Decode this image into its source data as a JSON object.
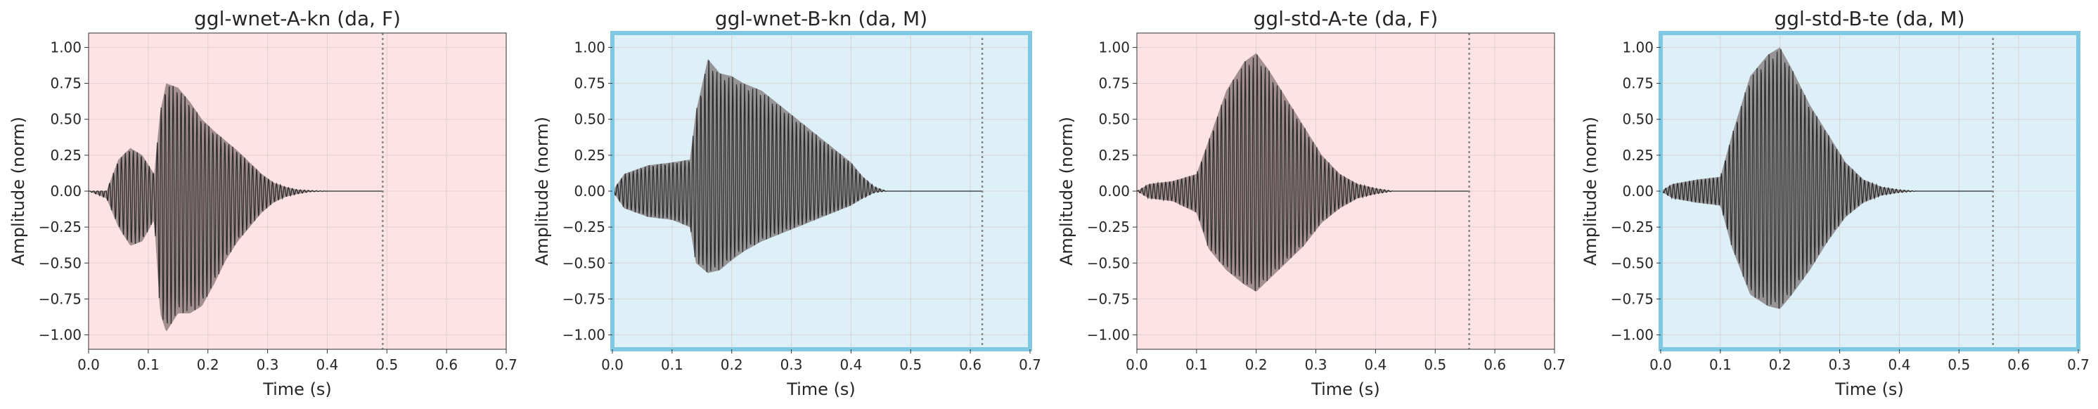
{
  "chart_data": [
    {
      "type": "line",
      "title": "ggl-wnet-A-kn (da, F)",
      "xlabel": "Time (s)",
      "ylabel": "Amplitude (norm)",
      "xlim": [
        0.0,
        0.7
      ],
      "ylim": [
        -1.1,
        1.1
      ],
      "xticks": [
        "0.0",
        "0.1",
        "0.2",
        "0.3",
        "0.4",
        "0.5",
        "0.6",
        "0.7"
      ],
      "yticks": [
        "1.00",
        "0.75",
        "0.50",
        "0.25",
        "0.00",
        "−0.25",
        "−0.50",
        "−0.75",
        "−1.00"
      ],
      "background": "#fde3e3",
      "highlighted": false,
      "end_marker_x": 0.493,
      "grid": true,
      "envelope": {
        "t": [
          0.0,
          0.03,
          0.05,
          0.07,
          0.09,
          0.11,
          0.12,
          0.13,
          0.15,
          0.17,
          0.19,
          0.21,
          0.23,
          0.25,
          0.27,
          0.29,
          0.31,
          0.33,
          0.35,
          0.37,
          0.4,
          0.45,
          0.493
        ],
        "upper": [
          0.0,
          0.0,
          0.22,
          0.3,
          0.25,
          0.12,
          0.55,
          0.75,
          0.72,
          0.62,
          0.5,
          0.42,
          0.35,
          0.28,
          0.2,
          0.12,
          0.06,
          0.03,
          0.01,
          0.005,
          0.0,
          0.0,
          0.0
        ],
        "lower": [
          0.0,
          -0.05,
          -0.25,
          -0.38,
          -0.35,
          -0.2,
          -0.85,
          -0.98,
          -0.85,
          -0.85,
          -0.8,
          -0.65,
          -0.48,
          -0.35,
          -0.25,
          -0.15,
          -0.08,
          -0.04,
          -0.02,
          -0.005,
          0.0,
          0.0,
          0.0
        ]
      }
    },
    {
      "type": "line",
      "title": "ggl-wnet-B-kn (da, M)",
      "xlabel": "Time (s)",
      "ylabel": "Amplitude (norm)",
      "xlim": [
        0.0,
        0.7
      ],
      "ylim": [
        -1.1,
        1.1
      ],
      "xticks": [
        "0.0",
        "0.1",
        "0.2",
        "0.3",
        "0.4",
        "0.5",
        "0.6",
        "0.7"
      ],
      "yticks": [
        "1.00",
        "0.75",
        "0.50",
        "0.25",
        "0.00",
        "−0.25",
        "−0.50",
        "−0.75",
        "−1.00"
      ],
      "background": "#ddeff7",
      "highlighted": true,
      "end_marker_x": 0.62,
      "grid": true,
      "envelope": {
        "t": [
          0.0,
          0.02,
          0.06,
          0.1,
          0.13,
          0.14,
          0.16,
          0.18,
          0.2,
          0.22,
          0.25,
          0.28,
          0.31,
          0.34,
          0.37,
          0.4,
          0.42,
          0.44,
          0.46,
          0.5,
          0.62
        ],
        "upper": [
          0.0,
          0.12,
          0.18,
          0.2,
          0.22,
          0.55,
          0.92,
          0.82,
          0.8,
          0.75,
          0.7,
          0.6,
          0.5,
          0.4,
          0.3,
          0.2,
          0.1,
          0.03,
          0.0,
          0.0,
          0.0
        ],
        "lower": [
          0.0,
          -0.12,
          -0.18,
          -0.2,
          -0.25,
          -0.5,
          -0.57,
          -0.55,
          -0.48,
          -0.42,
          -0.35,
          -0.3,
          -0.25,
          -0.2,
          -0.15,
          -0.1,
          -0.05,
          -0.01,
          0.0,
          0.0,
          0.0
        ]
      }
    },
    {
      "type": "line",
      "title": "ggl-std-A-te (da, F)",
      "xlabel": "Time (s)",
      "ylabel": "Amplitude (norm)",
      "xlim": [
        0.0,
        0.7
      ],
      "ylim": [
        -1.1,
        1.1
      ],
      "xticks": [
        "0.0",
        "0.1",
        "0.2",
        "0.3",
        "0.4",
        "0.5",
        "0.6",
        "0.7"
      ],
      "yticks": [
        "1.00",
        "0.75",
        "0.50",
        "0.25",
        "0.00",
        "−0.25",
        "−0.50",
        "−0.75",
        "−1.00"
      ],
      "background": "#fde3e3",
      "highlighted": false,
      "end_marker_x": 0.557,
      "grid": true,
      "envelope": {
        "t": [
          0.0,
          0.02,
          0.06,
          0.1,
          0.12,
          0.15,
          0.18,
          0.2,
          0.22,
          0.25,
          0.28,
          0.31,
          0.34,
          0.37,
          0.4,
          0.43,
          0.47,
          0.557
        ],
        "upper": [
          0.0,
          0.05,
          0.07,
          0.12,
          0.35,
          0.7,
          0.9,
          0.96,
          0.85,
          0.65,
          0.45,
          0.25,
          0.12,
          0.05,
          0.02,
          0.0,
          0.0,
          0.0
        ],
        "lower": [
          0.0,
          -0.05,
          -0.07,
          -0.15,
          -0.4,
          -0.55,
          -0.65,
          -0.7,
          -0.62,
          -0.5,
          -0.38,
          -0.22,
          -0.12,
          -0.05,
          -0.02,
          0.0,
          0.0,
          0.0
        ]
      }
    },
    {
      "type": "line",
      "title": "ggl-std-B-te (da, M)",
      "xlabel": "Time (s)",
      "ylabel": "Amplitude (norm)",
      "xlim": [
        0.0,
        0.7
      ],
      "ylim": [
        -1.1,
        1.1
      ],
      "xticks": [
        "0.0",
        "0.1",
        "0.2",
        "0.3",
        "0.4",
        "0.5",
        "0.6",
        "0.7"
      ],
      "yticks": [
        "1.00",
        "0.75",
        "0.50",
        "0.25",
        "0.00",
        "−0.25",
        "−0.50",
        "−0.75",
        "−1.00"
      ],
      "background": "#ddeff7",
      "highlighted": true,
      "end_marker_x": 0.557,
      "grid": true,
      "envelope": {
        "t": [
          0.0,
          0.02,
          0.06,
          0.1,
          0.12,
          0.15,
          0.18,
          0.2,
          0.22,
          0.25,
          0.28,
          0.31,
          0.34,
          0.37,
          0.4,
          0.43,
          0.47,
          0.557
        ],
        "upper": [
          0.0,
          0.05,
          0.08,
          0.1,
          0.4,
          0.8,
          0.95,
          1.0,
          0.85,
          0.6,
          0.4,
          0.2,
          0.08,
          0.03,
          0.01,
          0.0,
          0.0,
          0.0
        ],
        "lower": [
          0.0,
          -0.05,
          -0.08,
          -0.1,
          -0.4,
          -0.72,
          -0.8,
          -0.82,
          -0.72,
          -0.55,
          -0.35,
          -0.18,
          -0.08,
          -0.03,
          -0.01,
          0.0,
          0.0,
          0.0
        ]
      }
    }
  ],
  "colors": {
    "waveform": "#2b2b2b",
    "waveform_fill": "#5a4a4a",
    "highlight_border": "#7ec8e3",
    "end_marker": "#888888",
    "grid": "#d9c9c9",
    "axis": "#333333"
  }
}
